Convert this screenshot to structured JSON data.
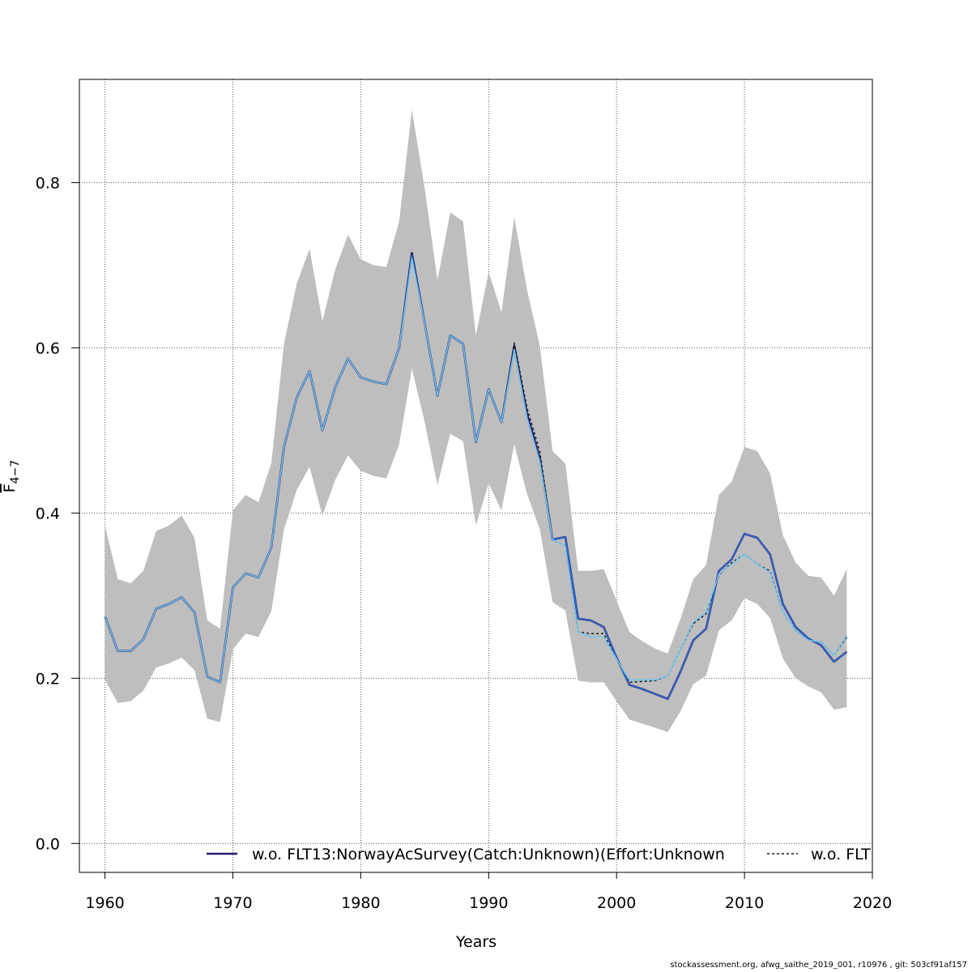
{
  "chart_data": {
    "type": "line",
    "xlabel": "Years",
    "ylabel_main": "F",
    "ylabel_sub": "4−7",
    "xlim": [
      1958,
      2020
    ],
    "ylim": [
      -0.035,
      0.925
    ],
    "x_ticks": [
      1960,
      1970,
      1980,
      1990,
      2000,
      2010,
      2020
    ],
    "y_ticks": [
      0.0,
      0.2,
      0.4,
      0.6,
      0.8
    ],
    "y_tick_labels": [
      "0.0",
      "0.2",
      "0.4",
      "0.6",
      "0.8"
    ],
    "grid": true,
    "legend_position": "bottom",
    "colors": {
      "band": "#bebebe",
      "main": "#2d1e6e",
      "black_dashed": "#1a1a1a",
      "blue": "#2b6fd6",
      "light_blue": "#6ec6f0"
    },
    "x": [
      1960,
      1961,
      1962,
      1963,
      1964,
      1965,
      1966,
      1967,
      1968,
      1969,
      1970,
      1971,
      1972,
      1973,
      1974,
      1975,
      1976,
      1977,
      1978,
      1979,
      1980,
      1981,
      1982,
      1983,
      1984,
      1985,
      1986,
      1987,
      1988,
      1989,
      1990,
      1991,
      1992,
      1993,
      1994,
      1995,
      1996,
      1997,
      1998,
      1999,
      2000,
      2001,
      2002,
      2003,
      2004,
      2005,
      2006,
      2007,
      2008,
      2009,
      2010,
      2011,
      2012,
      2013,
      2014,
      2015,
      2016,
      2017,
      2018
    ],
    "band_upper": [
      0.385,
      0.32,
      0.315,
      0.33,
      0.378,
      0.385,
      0.397,
      0.37,
      0.27,
      0.26,
      0.403,
      0.422,
      0.413,
      0.46,
      0.605,
      0.678,
      0.72,
      0.632,
      0.695,
      0.737,
      0.707,
      0.7,
      0.698,
      0.753,
      0.888,
      0.793,
      0.682,
      0.764,
      0.753,
      0.615,
      0.692,
      0.643,
      0.758,
      0.67,
      0.602,
      0.475,
      0.46,
      0.33,
      0.33,
      0.332,
      0.294,
      0.256,
      0.245,
      0.236,
      0.23,
      0.272,
      0.32,
      0.337,
      0.422,
      0.438,
      0.48,
      0.475,
      0.448,
      0.373,
      0.34,
      0.324,
      0.322,
      0.3,
      0.332
    ],
    "band_lower": [
      0.198,
      0.17,
      0.172,
      0.185,
      0.213,
      0.218,
      0.225,
      0.21,
      0.151,
      0.147,
      0.235,
      0.254,
      0.25,
      0.281,
      0.38,
      0.428,
      0.456,
      0.397,
      0.44,
      0.47,
      0.451,
      0.445,
      0.442,
      0.483,
      0.575,
      0.51,
      0.434,
      0.496,
      0.487,
      0.385,
      0.436,
      0.403,
      0.483,
      0.423,
      0.38,
      0.292,
      0.282,
      0.197,
      0.195,
      0.195,
      0.172,
      0.15,
      0.145,
      0.14,
      0.135,
      0.16,
      0.193,
      0.203,
      0.258,
      0.27,
      0.297,
      0.29,
      0.273,
      0.224,
      0.2,
      0.19,
      0.183,
      0.162,
      0.165
    ],
    "series": [
      {
        "name": "w.o. FLT13:NorwayAcSurvey(Catch:Unknown)(Effort:Unknown",
        "color": "#2d1e6e",
        "style": "solid",
        "values": [
          0.275,
          0.233,
          0.233,
          0.247,
          0.284,
          0.29,
          0.298,
          0.28,
          0.202,
          0.195,
          0.31,
          0.327,
          0.322,
          0.358,
          0.48,
          0.54,
          0.572,
          0.5,
          0.552,
          0.587,
          0.564,
          0.559,
          0.556,
          0.6,
          0.715,
          0.63,
          0.542,
          0.615,
          0.605,
          0.486,
          0.55,
          0.51,
          0.603,
          0.52,
          0.466,
          0.368,
          0.371,
          0.272,
          0.27,
          0.262,
          0.225,
          0.192,
          0.187,
          0.181,
          0.175,
          0.208,
          0.246,
          0.26,
          0.33,
          0.344,
          0.375,
          0.37,
          0.35,
          0.29,
          0.262,
          0.248,
          0.24,
          0.22,
          0.232
        ]
      },
      {
        "name": "w.o. FLT",
        "color": "#1a1a1a",
        "style": "dashed",
        "values": [
          0.275,
          0.233,
          0.233,
          0.247,
          0.284,
          0.29,
          0.298,
          0.28,
          0.202,
          0.195,
          0.31,
          0.327,
          0.322,
          0.358,
          0.48,
          0.54,
          0.572,
          0.5,
          0.552,
          0.587,
          0.564,
          0.559,
          0.556,
          0.6,
          0.714,
          0.63,
          0.542,
          0.615,
          0.605,
          0.486,
          0.55,
          0.51,
          0.606,
          0.527,
          0.474,
          0.368,
          0.36,
          0.256,
          0.254,
          0.254,
          0.223,
          0.195,
          0.196,
          0.197,
          0.203,
          0.235,
          0.266,
          0.278,
          0.325,
          0.34,
          0.35,
          0.338,
          0.33,
          0.28,
          0.258,
          0.246,
          0.244,
          0.228,
          0.25
        ]
      },
      {
        "color": "#2b6fd6",
        "style": "solid",
        "values": [
          0.275,
          0.233,
          0.233,
          0.247,
          0.284,
          0.29,
          0.298,
          0.28,
          0.202,
          0.195,
          0.31,
          0.327,
          0.322,
          0.358,
          0.48,
          0.54,
          0.572,
          0.5,
          0.552,
          0.587,
          0.564,
          0.559,
          0.556,
          0.6,
          0.712,
          0.63,
          0.542,
          0.615,
          0.605,
          0.486,
          0.55,
          0.51,
          0.598,
          0.515,
          0.462,
          0.368,
          0.371,
          0.272,
          0.27,
          0.262,
          0.225,
          0.192,
          0.187,
          0.181,
          0.175,
          0.208,
          0.246,
          0.26,
          0.33,
          0.344,
          0.375,
          0.37,
          0.35,
          0.29,
          0.262,
          0.248,
          0.24,
          0.22,
          0.232
        ]
      },
      {
        "color": "#6ec6f0",
        "style": "solid",
        "values": [
          0.275,
          0.233,
          0.233,
          0.247,
          0.284,
          0.29,
          0.298,
          0.28,
          0.202,
          0.195,
          0.31,
          0.327,
          0.322,
          0.358,
          0.48,
          0.54,
          0.572,
          0.5,
          0.552,
          0.587,
          0.564,
          0.559,
          0.556,
          0.6,
          0.708,
          0.63,
          0.542,
          0.615,
          0.605,
          0.486,
          0.55,
          0.51,
          0.598,
          0.515,
          0.462,
          0.368,
          0.36,
          0.256,
          0.25,
          0.25,
          0.223,
          0.198,
          0.198,
          0.198,
          0.203,
          0.235,
          0.268,
          0.28,
          0.326,
          0.338,
          0.35,
          0.338,
          0.328,
          0.28,
          0.258,
          0.246,
          0.244,
          0.228,
          0.252
        ]
      }
    ],
    "legend": {
      "entries": [
        {
          "label": "w.o. FLT13:NorwayAcSurvey(Catch:Unknown)(Effort:Unknown",
          "color": "#2d1e6e",
          "style": "solid"
        },
        {
          "label": "w.o. FLT",
          "color": "#1a1a1a",
          "style": "dashed"
        }
      ]
    }
  },
  "footer": {
    "text": "stockassessment.org, afwg_saithe_2019_001, r10976 , git: 503cf91af157"
  }
}
